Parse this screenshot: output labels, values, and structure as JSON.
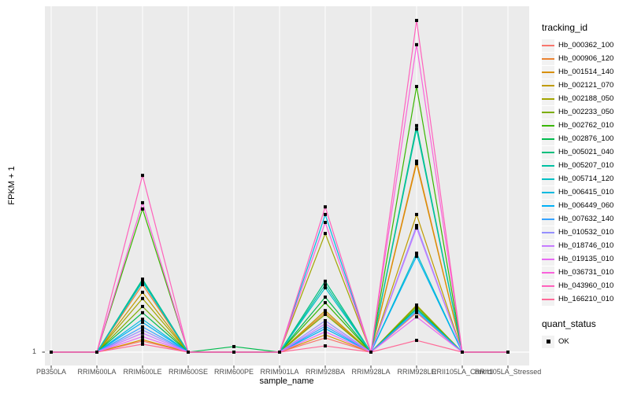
{
  "chart_data": {
    "type": "line",
    "title": "",
    "xlabel": "sample_name",
    "ylabel": "FPKM + 1",
    "y_tick_labels": [
      "1"
    ],
    "categories": [
      "PB350LA",
      "RRIM600LA",
      "RRIM600LE",
      "RRIM600SE",
      "RRIM600PE",
      "RRIM901LA",
      "RRIM928BA",
      "RRIM928LA",
      "RRIM928LE",
      "RRII105LA_Control",
      "RRII105LA_Stressed"
    ],
    "values_unit": "fraction of panel height above the y=1 baseline; only the tick '1' is labeled on the y axis",
    "grid": "white major gridlines on gray panel",
    "legend_position": "right",
    "legend_title": "tracking_id",
    "panel_bg": "#EBEBEB",
    "grid_color": "#FFFFFF",
    "point_color": "#000000",
    "point_shape": "square",
    "series": [
      {
        "name": "Hb_000362_100",
        "color": "#F8766D",
        "values": [
          0,
          0,
          0.032,
          0,
          0,
          0,
          0.041,
          0,
          0.114,
          0,
          0
        ]
      },
      {
        "name": "Hb_000906_120",
        "color": "#EA8331",
        "values": [
          0,
          0,
          0.195,
          0,
          0,
          0,
          0.114,
          0,
          0.552,
          0,
          0
        ]
      },
      {
        "name": "Hb_001514_140",
        "color": "#D89000",
        "values": [
          0,
          0,
          0.036,
          0,
          0,
          0,
          0.05,
          0,
          0.545,
          0,
          0
        ]
      },
      {
        "name": "Hb_002121_070",
        "color": "#C09B00",
        "values": [
          0,
          0,
          0.173,
          0,
          0,
          0,
          0.12,
          0,
          0.398,
          0,
          0
        ]
      },
      {
        "name": "Hb_002188_050",
        "color": "#A3A500",
        "values": [
          0,
          0,
          0.155,
          0,
          0,
          0,
          0.343,
          0,
          0.136,
          0,
          0
        ]
      },
      {
        "name": "Hb_002233_050",
        "color": "#7CAE00",
        "values": [
          0,
          0,
          0.132,
          0,
          0,
          0,
          0.109,
          0,
          0.132,
          0,
          0
        ]
      },
      {
        "name": "Hb_002762_010",
        "color": "#39B600",
        "values": [
          0,
          0,
          0.414,
          0,
          0,
          0,
          0.143,
          0,
          0.768,
          0,
          0
        ]
      },
      {
        "name": "Hb_002876_100",
        "color": "#00BB4E",
        "values": [
          0,
          0,
          0.114,
          0,
          0.016,
          0,
          0.159,
          0,
          0.127,
          0,
          0
        ]
      },
      {
        "name": "Hb_005021_040",
        "color": "#00BF7D",
        "values": [
          0,
          0,
          0.211,
          0,
          0,
          0,
          0.205,
          0,
          0.655,
          0,
          0
        ]
      },
      {
        "name": "Hb_005207_010",
        "color": "#00C1A3",
        "values": [
          0,
          0,
          0.207,
          0,
          0,
          0,
          0.195,
          0,
          0.645,
          0,
          0
        ]
      },
      {
        "name": "Hb_005714_120",
        "color": "#00BFC4",
        "values": [
          0,
          0,
          0.203,
          0,
          0,
          0,
          0.186,
          0,
          0.286,
          0,
          0
        ]
      },
      {
        "name": "Hb_006415_010",
        "color": "#00BAE0",
        "values": [
          0,
          0,
          0.095,
          0,
          0,
          0,
          0.398,
          0,
          0.123,
          0,
          0
        ]
      },
      {
        "name": "Hb_006449_060",
        "color": "#00B0F6",
        "values": [
          0,
          0,
          0.086,
          0,
          0,
          0,
          0.068,
          0,
          0.277,
          0,
          0
        ]
      },
      {
        "name": "Hb_007632_140",
        "color": "#35A2FF",
        "values": [
          0,
          0,
          0.073,
          0,
          0,
          0,
          0.075,
          0,
          0.118,
          0,
          0
        ]
      },
      {
        "name": "Hb_010532_010",
        "color": "#9590FF",
        "values": [
          0,
          0,
          0.064,
          0,
          0,
          0,
          0.091,
          0,
          0.366,
          0,
          0
        ]
      },
      {
        "name": "Hb_018746_010",
        "color": "#C77CFF",
        "values": [
          0,
          0,
          0.055,
          0,
          0,
          0,
          0.082,
          0,
          0.359,
          0,
          0
        ]
      },
      {
        "name": "Hb_019135_010",
        "color": "#E76BF3",
        "values": [
          0,
          0,
          0.045,
          0,
          0,
          0,
          0.059,
          0,
          0.102,
          0,
          0
        ]
      },
      {
        "name": "Hb_036731_010",
        "color": "#FA62DB",
        "values": [
          0,
          0,
          0.432,
          0,
          0,
          0,
          0.375,
          0,
          0.889,
          0,
          0
        ]
      },
      {
        "name": "Hb_043960_010",
        "color": "#FF62BC",
        "values": [
          0,
          0,
          0.511,
          0,
          0,
          0,
          0.42,
          0,
          0.959,
          0,
          0
        ]
      },
      {
        "name": "Hb_166210_010",
        "color": "#FF6A98",
        "values": [
          0,
          0,
          0.023,
          0,
          0,
          0,
          0.018,
          0,
          0.034,
          0,
          0
        ]
      }
    ],
    "quant_legend": {
      "title": "quant_status",
      "items": [
        {
          "label": "OK",
          "marker": "black-square"
        }
      ]
    }
  }
}
